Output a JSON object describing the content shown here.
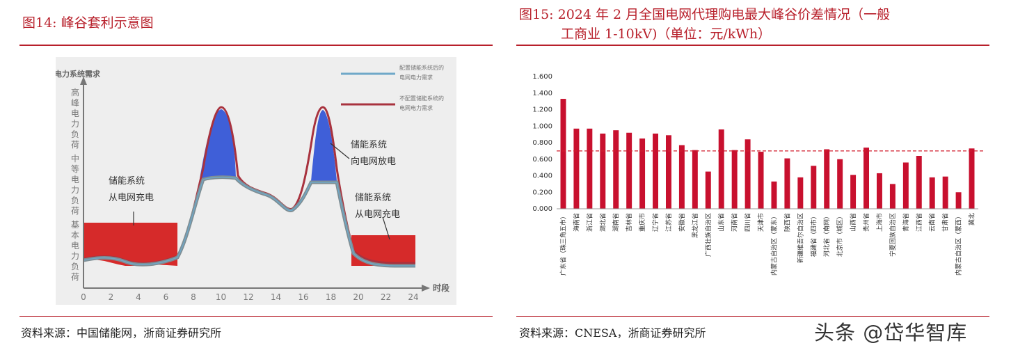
{
  "left": {
    "title": "图14:  峰谷套利示意图",
    "source": "资料来源：中国储能网，浙商证券研究所",
    "chart_data": {
      "type": "area",
      "ylabel": "电力系统需求",
      "xlabel": "时段",
      "x_ticks": [
        "0",
        "2",
        "4",
        "6",
        "8",
        "10",
        "12",
        "14",
        "16",
        "18",
        "20",
        "22",
        "24"
      ],
      "xlim": [
        0,
        24
      ],
      "y_bands": [
        "高峰电力负荷",
        "中等电力负荷",
        "基本电力负荷"
      ],
      "legend": [
        {
          "name": "配置储能系统后的电网电力需求",
          "color": "#6fa8c8"
        },
        {
          "name": "不配置储能系统的电网电力需求",
          "color": "#a8323e"
        }
      ],
      "annotations": [
        "储能系统从电网充电",
        "储能系统向电网放电",
        "储能系统从电网充电"
      ],
      "discharge_color": "#3f5fd8",
      "charge_color": "#d62a2a",
      "curve_color": "#7f8e94"
    }
  },
  "right": {
    "title_line1": "图15:  2024 年 2 月全国电网代理购电最大峰谷价差情况（一般",
    "title_line2": "工商业 1-10kV)（单位：元/kWh）",
    "source": "资料来源：CNESA，浙商证券研究所",
    "chart_data": {
      "type": "bar",
      "categories": [
        "广东省（珠三角五市）",
        "海南省",
        "浙江省",
        "湖北省",
        "湖南省",
        "吉林省",
        "重庆市",
        "辽宁省",
        "江苏省",
        "安徽省",
        "黑龙江省",
        "广西壮族自治区",
        "山东省",
        "河南省",
        "四川省",
        "天津市",
        "内蒙古自治区（蒙东）",
        "陕西省",
        "新疆维吾尔自治区",
        "福建省（四市）",
        "河北省（南网）",
        "北京市（城区）",
        "山西省",
        "贵州省",
        "上海市",
        "宁夏回族自治区",
        "青海省",
        "江西省",
        "云南省",
        "甘肃省",
        "内蒙古自治区（蒙西）",
        "冀北"
      ],
      "values": [
        1.33,
        0.97,
        0.97,
        0.91,
        0.95,
        0.92,
        0.85,
        0.91,
        0.89,
        0.77,
        0.71,
        0.45,
        0.96,
        0.71,
        0.84,
        0.69,
        0.33,
        0.61,
        0.38,
        0.52,
        0.72,
        0.6,
        0.41,
        0.74,
        0.43,
        0.3,
        0.56,
        0.64,
        0.38,
        0.39,
        0.2,
        0.73
      ],
      "y_ticks": [
        "0.000",
        "0.200",
        "0.400",
        "0.600",
        "0.800",
        "1.000",
        "1.200",
        "1.400",
        "1.600"
      ],
      "ylim": [
        0,
        1.6
      ],
      "reference_line": 0.7,
      "bar_color": "#c8102e"
    }
  },
  "watermark": "头条 @岱华智库"
}
